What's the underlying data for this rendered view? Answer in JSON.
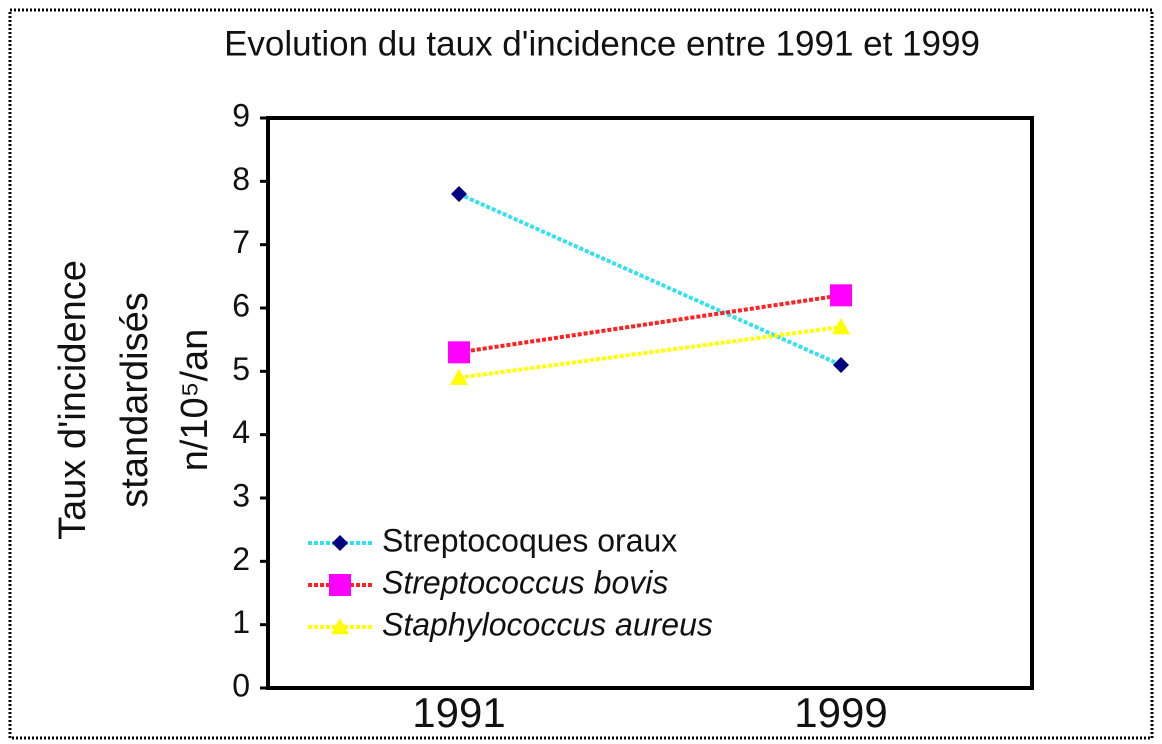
{
  "chart_data": {
    "type": "line",
    "title": "Evolution du taux d'incidence entre 1991 et 1999",
    "y_label": [
      "Taux d'incidence",
      "standardisés",
      "n/10⁵/an"
    ],
    "categories": [
      "1991",
      "1999"
    ],
    "series": [
      {
        "name": "Streptocoques oraux",
        "color": "#33e0ee",
        "marker_color": "#000080",
        "marker": "diamond",
        "font_style": "normal",
        "values": [
          7.8,
          5.1
        ]
      },
      {
        "name": "Streptococcus bovis",
        "color": "#ff2020",
        "marker_color": "#ff00ff",
        "marker": "square",
        "font_style": "italic",
        "values": [
          5.3,
          6.2
        ]
      },
      {
        "name": "Staphylococcus aureus",
        "color": "#ffff00",
        "marker_color": "#ffff00",
        "marker": "triangle",
        "font_style": "italic",
        "values": [
          4.9,
          5.7
        ]
      }
    ],
    "ylim": [
      0,
      9
    ],
    "yticks": [
      0,
      1,
      2,
      3,
      4,
      5,
      6,
      7,
      8,
      9
    ],
    "grid": false,
    "legend": "lower left"
  }
}
